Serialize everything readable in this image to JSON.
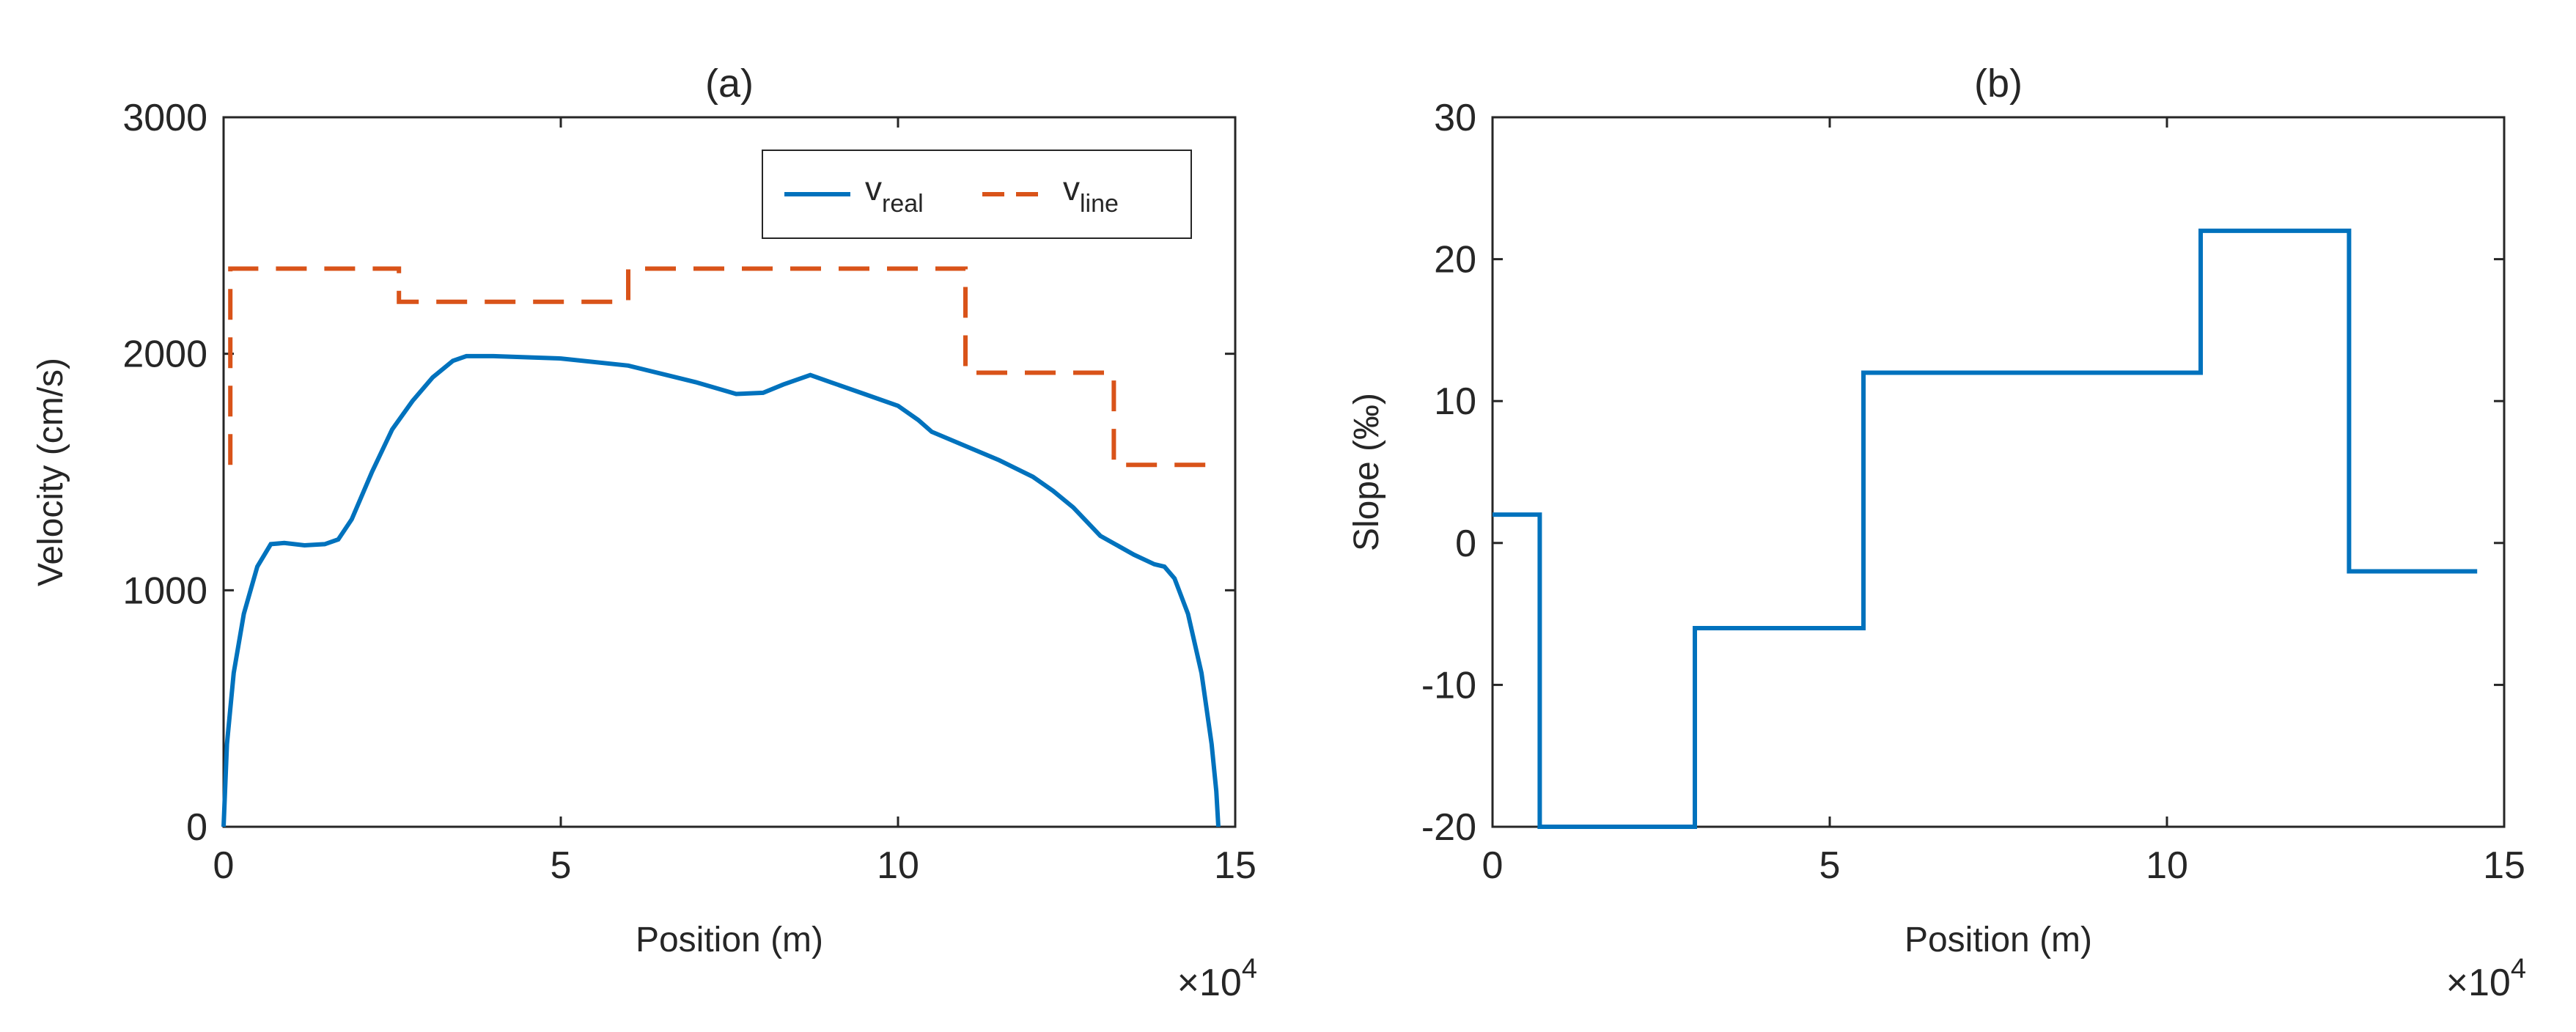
{
  "chart_data": [
    {
      "id": "a",
      "type": "line",
      "title": "(a)",
      "xlabel": "Position (m)",
      "ylabel": "Velocity (cm/s)",
      "x_multiplier": "×10",
      "x_multiplier_exp": "4",
      "xlim": [
        0,
        15
      ],
      "ylim": [
        0,
        3000
      ],
      "xticks": [
        0,
        5,
        10,
        15
      ],
      "yticks": [
        0,
        1000,
        2000,
        3000
      ],
      "xtick_labels": [
        "0",
        "5",
        "10",
        "15"
      ],
      "ytick_labels": [
        "0",
        "1000",
        "2000",
        "3000"
      ],
      "legend_position": "top-right",
      "series": [
        {
          "name": "v_real",
          "legend_base": "v",
          "legend_sub": "real",
          "color": "#0072BD",
          "style": "solid",
          "x": [
            0,
            0.05,
            0.15,
            0.3,
            0.5,
            0.7,
            0.9,
            1.2,
            1.5,
            1.7,
            1.9,
            2.2,
            2.5,
            2.8,
            3.1,
            3.4,
            3.6,
            4.0,
            5.0,
            6.0,
            7.0,
            7.6,
            8.0,
            8.3,
            8.7,
            9.0,
            9.5,
            10.0,
            10.3,
            10.5,
            11.0,
            11.5,
            12.0,
            12.3,
            12.6,
            13.0,
            13.5,
            13.8,
            13.95,
            14.1,
            14.3,
            14.5,
            14.65,
            14.72,
            14.75
          ],
          "y": [
            0,
            350,
            650,
            900,
            1100,
            1195,
            1200,
            1190,
            1195,
            1215,
            1300,
            1500,
            1680,
            1800,
            1900,
            1970,
            1990,
            1990,
            1980,
            1950,
            1880,
            1830,
            1835,
            1870,
            1910,
            1880,
            1830,
            1780,
            1720,
            1670,
            1610,
            1550,
            1480,
            1420,
            1350,
            1230,
            1150,
            1110,
            1100,
            1050,
            900,
            650,
            350,
            150,
            0
          ]
        },
        {
          "name": "v_line",
          "legend_base": "v",
          "legend_sub": "line",
          "color": "#D95319",
          "style": "dashed",
          "x": [
            0.1,
            0.1,
            2.6,
            2.6,
            6.0,
            6.0,
            11.0,
            11.0,
            13.2,
            13.2,
            14.8
          ],
          "y": [
            1530,
            2360,
            2360,
            2220,
            2220,
            2360,
            2360,
            1920,
            1920,
            1530,
            1530
          ]
        }
      ]
    },
    {
      "id": "b",
      "type": "line",
      "title": "(b)",
      "xlabel": "Position (m)",
      "ylabel": "Slope (‰)",
      "x_multiplier": "×10",
      "x_multiplier_exp": "4",
      "xlim": [
        0,
        15
      ],
      "ylim": [
        -20,
        30
      ],
      "xticks": [
        0,
        5,
        10,
        15
      ],
      "yticks": [
        -20,
        -10,
        0,
        10,
        20,
        30
      ],
      "xtick_labels": [
        "0",
        "5",
        "10",
        "15"
      ],
      "ytick_labels": [
        "-20",
        "-10",
        "0",
        "10",
        "20",
        "30"
      ],
      "series": [
        {
          "name": "slope",
          "color": "#0072BD",
          "style": "solid",
          "x": [
            0,
            0.7,
            0.7,
            3.0,
            3.0,
            5.5,
            5.5,
            10.5,
            10.5,
            12.7,
            12.7,
            14.6
          ],
          "y": [
            2,
            2,
            -20,
            -20,
            -6,
            -6,
            12,
            12,
            22,
            22,
            -2,
            -2
          ]
        }
      ]
    }
  ]
}
